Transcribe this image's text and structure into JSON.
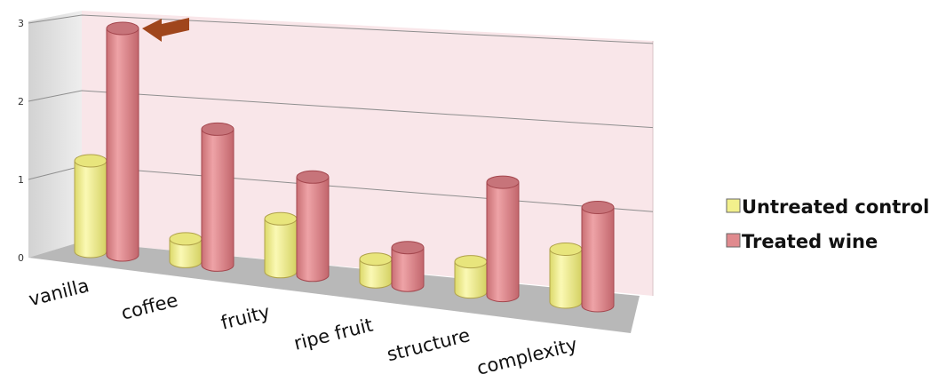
{
  "chart_data": {
    "type": "bar",
    "style": "3d-cylinder",
    "categories": [
      "vanilla",
      "coffee",
      "fruity",
      "ripe fruit",
      "structure",
      "complexity"
    ],
    "series": [
      {
        "name": "Untreated control",
        "values": [
          1.2,
          0.3,
          0.7,
          0.3,
          0.4,
          0.7
        ],
        "color": "#f2f08c"
      },
      {
        "name": "Treated wine",
        "values": [
          3.0,
          1.8,
          1.3,
          0.5,
          1.5,
          1.3
        ],
        "color": "#e08a8e"
      }
    ],
    "yticks": [
      "0",
      "1",
      "2",
      "3"
    ],
    "ylim": [
      0,
      3
    ],
    "grid": true,
    "legend_position": "right",
    "annotation": {
      "type": "arrow",
      "target_category": "vanilla",
      "target_series": "Treated wine",
      "color": "#a0461c"
    }
  }
}
